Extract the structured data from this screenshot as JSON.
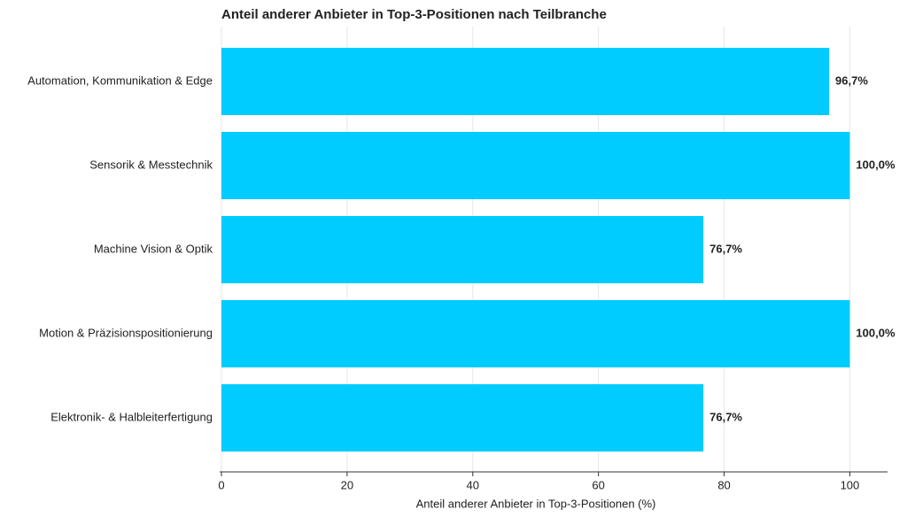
{
  "chart_data": {
    "type": "barh",
    "title": "Anteil anderer Anbieter in Top-3-Positionen nach Teilbranche",
    "x_label": "Anteil anderer Anbieter in Top-3-Positionen (%)",
    "categories": [
      "Automation, Kommunikation & Edge",
      "Sensorik & Messtechnik",
      "Machine Vision & Optik",
      "Motion & Präzisionspositionierung",
      "Elektronik- & Halbleiterfertigung"
    ],
    "values": [
      96.7,
      100.0,
      76.7,
      100.0,
      76.7
    ],
    "value_labels": [
      "96,7%",
      "100,0%",
      "76,7%",
      "100,0%",
      "76,7%"
    ],
    "color": "#00ccff",
    "xlim": [
      0,
      106
    ],
    "xticks": [
      0,
      20,
      40,
      60,
      80,
      100
    ],
    "grid": true
  }
}
